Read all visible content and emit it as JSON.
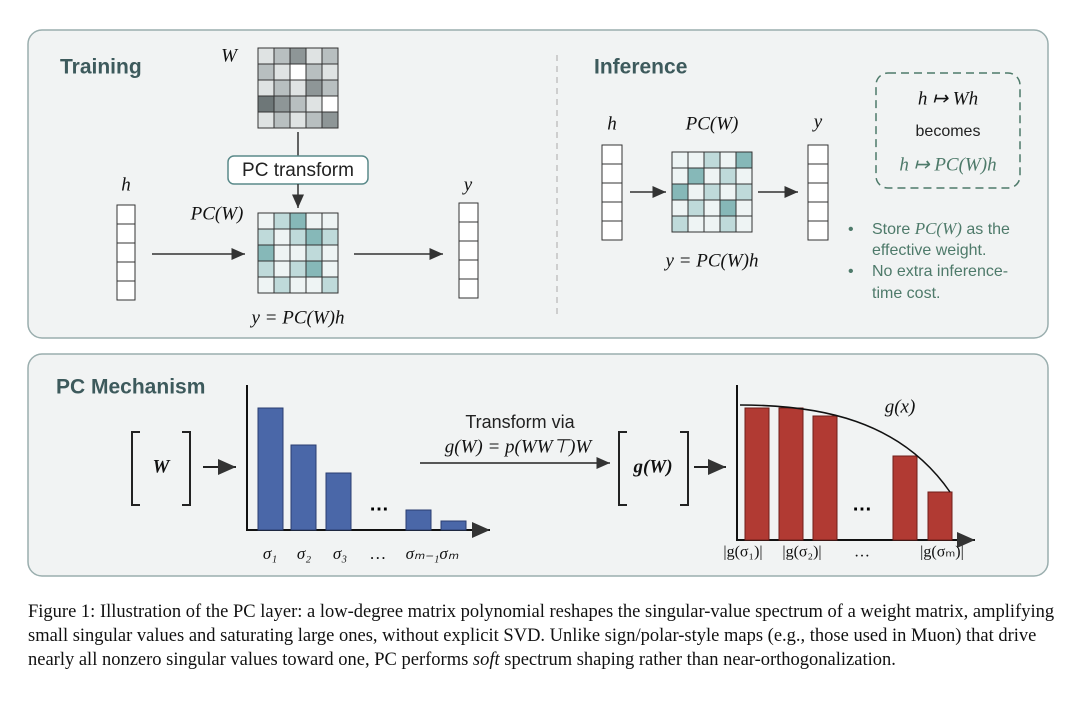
{
  "figure": {
    "training": {
      "title": "Training",
      "w_label": "W",
      "transform": "PC transform",
      "h_label": "h",
      "pcw_label": "PC(W)",
      "y_label": "y",
      "equation": "y = PC(W)h"
    },
    "inference": {
      "title": "Inference",
      "h_label": "h",
      "pcw_label": "PC(W)",
      "y_label": "y",
      "equation": "y = PC(W)h",
      "box": {
        "line1": "h ↦ Wh",
        "line2": "becomes",
        "line3": "h ↦ PC(W)h"
      },
      "bullets": [
        [
          "Store ",
          "PC(W)",
          " as the",
          "effective weight."
        ],
        [
          "No extra inference-",
          "time cost."
        ]
      ]
    },
    "mechanism": {
      "title": "PC Mechanism",
      "w_label": "W",
      "transform_line1": "Transform via",
      "transform_line2": "g(W) = p(WW⊤)W",
      "gw_label": "g(W)",
      "curve_label": "g(x)",
      "left_labels": [
        "σ₁",
        "σ₂",
        "σ₃",
        "…",
        "σₘ₋₁σₘ"
      ],
      "left_ellipsis": "…",
      "right_labels": [
        "|g(σ₁)|",
        "|g(σ₂)|",
        "…",
        "|g(σₘ)|"
      ],
      "right_ellipsis": "…"
    },
    "caption": {
      "before": "Figure 1: Illustration of the PC layer: a low-degree matrix polynomial reshapes the singular-value spectrum of a weight matrix, amplifying small singular values and saturating large ones, without explicit SVD. Unlike sign/polar-style maps (e.g., those used in Muon) that drive nearly all nonzero singular values toward one, PC performs ",
      "emphasis": "soft",
      "after": " spectrum shaping rather than near-orthogonalization."
    }
  }
}
